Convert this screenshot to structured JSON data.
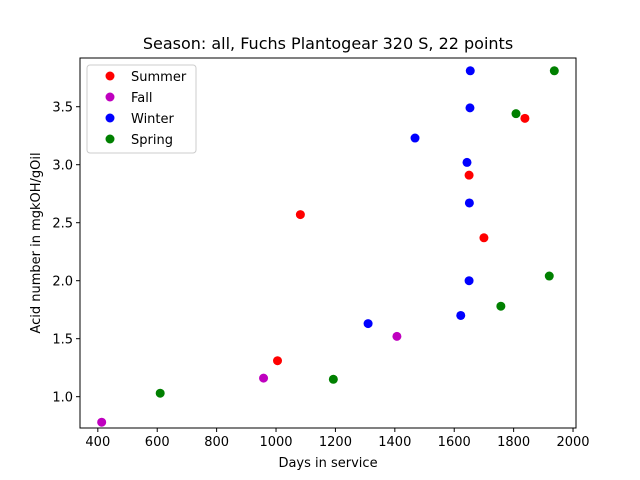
{
  "chart_data": {
    "type": "scatter",
    "title": "Season: all, Fuchs Plantogear 320 S, 22 points",
    "xlabel": "Days in service",
    "ylabel": "Acid number in mgkOH/gOil",
    "xlim": [
      340,
      2010
    ],
    "ylim": [
      0.73,
      3.92
    ],
    "xticks": [
      400,
      600,
      800,
      1000,
      1200,
      1400,
      1600,
      1800,
      2000
    ],
    "yticks": [
      1.0,
      1.5,
      2.0,
      2.5,
      3.0,
      3.5
    ],
    "ytick_labels": [
      "1.0",
      "1.5",
      "2.0",
      "2.5",
      "3.0",
      "3.5"
    ],
    "legend_position": "top-left",
    "series": [
      {
        "name": "Summer",
        "color": "#ff0000",
        "points": [
          {
            "x": 1005,
            "y": 1.31
          },
          {
            "x": 1082,
            "y": 2.57
          },
          {
            "x": 1650,
            "y": 2.91
          },
          {
            "x": 1700,
            "y": 2.37
          },
          {
            "x": 1838,
            "y": 3.4
          }
        ]
      },
      {
        "name": "Fall",
        "color": "#bf00bf",
        "points": [
          {
            "x": 413,
            "y": 0.78
          },
          {
            "x": 958,
            "y": 1.16
          },
          {
            "x": 1407,
            "y": 1.52
          }
        ]
      },
      {
        "name": "Winter",
        "color": "#0000ff",
        "points": [
          {
            "x": 1310,
            "y": 1.63
          },
          {
            "x": 1468,
            "y": 3.23
          },
          {
            "x": 1622,
            "y": 1.7
          },
          {
            "x": 1643,
            "y": 3.02
          },
          {
            "x": 1650,
            "y": 2.0
          },
          {
            "x": 1651,
            "y": 2.67
          },
          {
            "x": 1653,
            "y": 3.49
          },
          {
            "x": 1654,
            "y": 3.81
          }
        ]
      },
      {
        "name": "Spring",
        "color": "#008000",
        "points": [
          {
            "x": 610,
            "y": 1.03
          },
          {
            "x": 1193,
            "y": 1.15
          },
          {
            "x": 1757,
            "y": 1.78
          },
          {
            "x": 1808,
            "y": 3.44
          },
          {
            "x": 1920,
            "y": 2.04
          },
          {
            "x": 1937,
            "y": 3.81
          }
        ]
      }
    ]
  }
}
